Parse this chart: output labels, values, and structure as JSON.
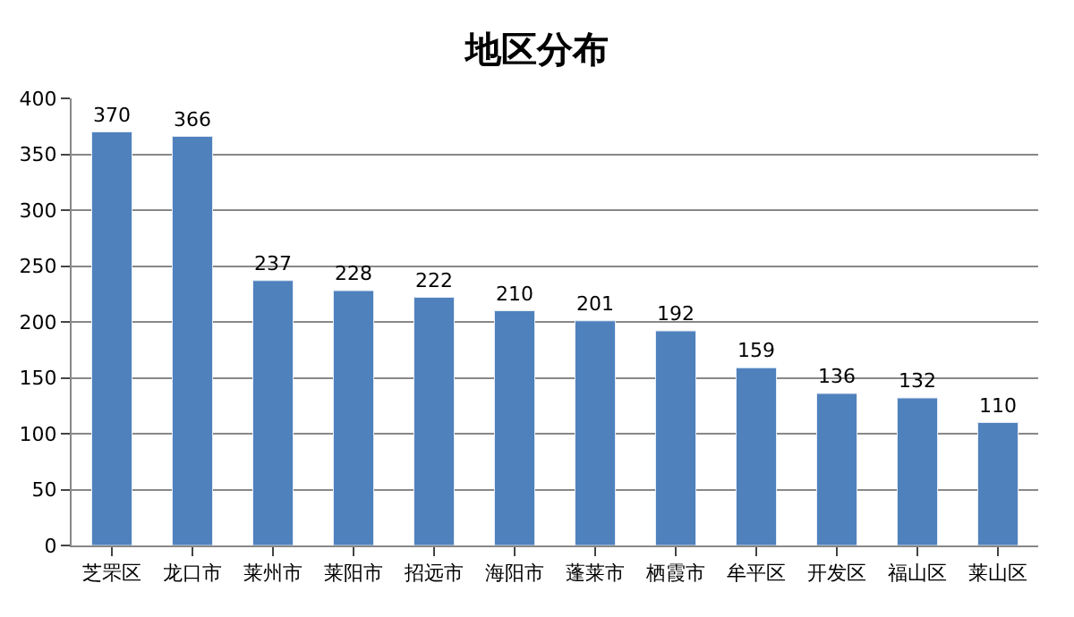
{
  "chart_data": {
    "type": "bar",
    "title": "地区分布",
    "categories": [
      "芝罘区",
      "龙口市",
      "莱州市",
      "莱阳市",
      "招远市",
      "海阳市",
      "蓬莱市",
      "栖霞市",
      "牟平区",
      "开发区",
      "福山区",
      "莱山区"
    ],
    "values": [
      370,
      366,
      237,
      228,
      222,
      210,
      201,
      192,
      159,
      136,
      132,
      110
    ],
    "color": "#4f81bd",
    "ylim": [
      0,
      400
    ],
    "yticks": [
      0,
      50,
      100,
      150,
      200,
      250,
      300,
      350,
      400
    ],
    "grid": "y",
    "data_labels": true
  }
}
